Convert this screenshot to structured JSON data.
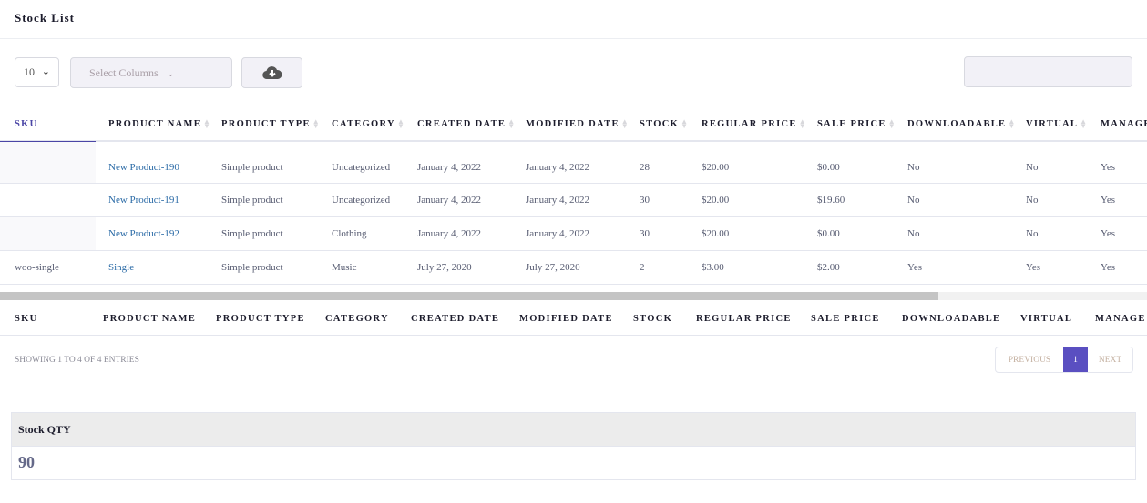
{
  "title": "Stock List",
  "toolbar": {
    "page_length": "10",
    "select_columns": "Select Columns",
    "download_icon": "cloud-download-icon"
  },
  "columns": [
    "SKU",
    "PRODUCT NAME",
    "PRODUCT TYPE",
    "CATEGORY",
    "CREATED DATE",
    "MODIFIED DATE",
    "STOCK",
    "REGULAR PRICE",
    "SALE PRICE",
    "DOWNLOADABLE",
    "VIRTUAL",
    "MANAGE S"
  ],
  "rows": [
    [
      "",
      "New Product-190",
      "Simple product",
      "Uncategorized",
      "January 4, 2022",
      "January 4, 2022",
      "28",
      "$20.00",
      "$0.00",
      "No",
      "No",
      "Yes"
    ],
    [
      "",
      "New Product-191",
      "Simple product",
      "Uncategorized",
      "January 4, 2022",
      "January 4, 2022",
      "30",
      "$20.00",
      "$19.60",
      "No",
      "No",
      "Yes"
    ],
    [
      "",
      "New Product-192",
      "Simple product",
      "Clothing",
      "January 4, 2022",
      "January 4, 2022",
      "30",
      "$20.00",
      "$0.00",
      "No",
      "No",
      "Yes"
    ],
    [
      "woo-single",
      "Single",
      "Simple product",
      "Music",
      "July 27, 2020",
      "July 27, 2020",
      "2",
      "$3.00",
      "$2.00",
      "Yes",
      "Yes",
      "Yes"
    ]
  ],
  "info": "SHOWING 1 TO 4 OF 4 ENTRIES",
  "pager": {
    "previous": "PREVIOUS",
    "current": "1",
    "next": "NEXT"
  },
  "summary": {
    "label": "Stock QTY",
    "value": "90"
  },
  "colors": {
    "accent": "#5a4fc1",
    "link": "#2a6aa6"
  }
}
